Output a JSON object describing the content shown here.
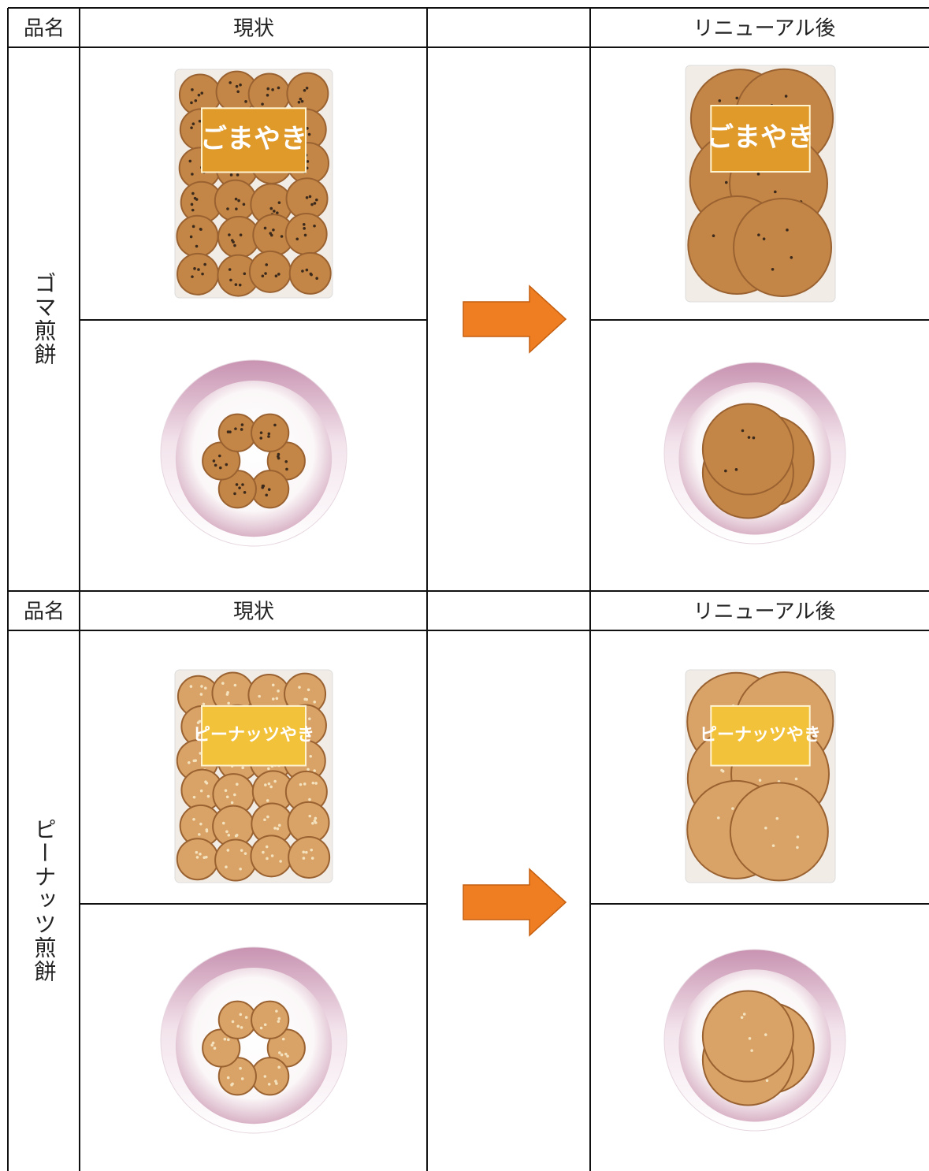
{
  "sections": [
    {
      "header": {
        "name": "品名",
        "current": "現状",
        "renewed": "リニューアル後"
      },
      "product": "ゴマ煎餅",
      "package_label": "ごまやき"
    },
    {
      "header": {
        "name": "品名",
        "current": "現状",
        "renewed": "リニューアル後"
      },
      "product": "ピーナッツ煎餅",
      "package_label": "ピーナッツやき"
    }
  ]
}
